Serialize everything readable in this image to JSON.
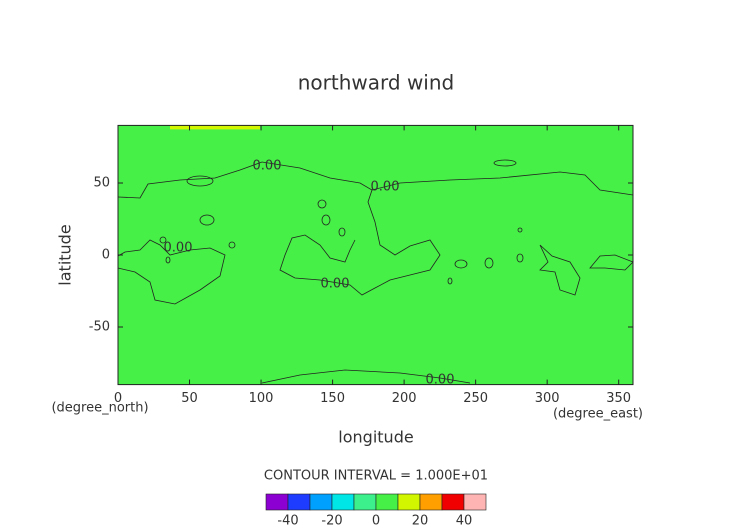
{
  "chart_data": {
    "type": "contour",
    "title": "northward wind",
    "xlabel": "longitude",
    "ylabel": "latitude",
    "xunit": "(degree_east)",
    "yunit": "(degree_north)",
    "xlim": [
      0,
      360
    ],
    "ylim": [
      -90,
      90
    ],
    "xticks": [
      0,
      50,
      100,
      150,
      200,
      250,
      300,
      350
    ],
    "yticks": [
      -50,
      0,
      50
    ],
    "contours": [
      {
        "level": 0,
        "label": "0.00"
      }
    ],
    "colorbar": {
      "title": "CONTOUR INTERVAL = 1.000E+01",
      "levels": [
        -50,
        -40,
        -30,
        -20,
        -10,
        0,
        10,
        20,
        30,
        40,
        50
      ],
      "colors": [
        "#8c00d2",
        "#1e3cff",
        "#00a0ff",
        "#00e6e6",
        "#3cf08c",
        "#46f046",
        "#d2f500",
        "#ffa000",
        "#f00000",
        "#ffb4b4"
      ],
      "ticks": [
        -40,
        -20,
        0,
        20,
        40
      ]
    }
  }
}
